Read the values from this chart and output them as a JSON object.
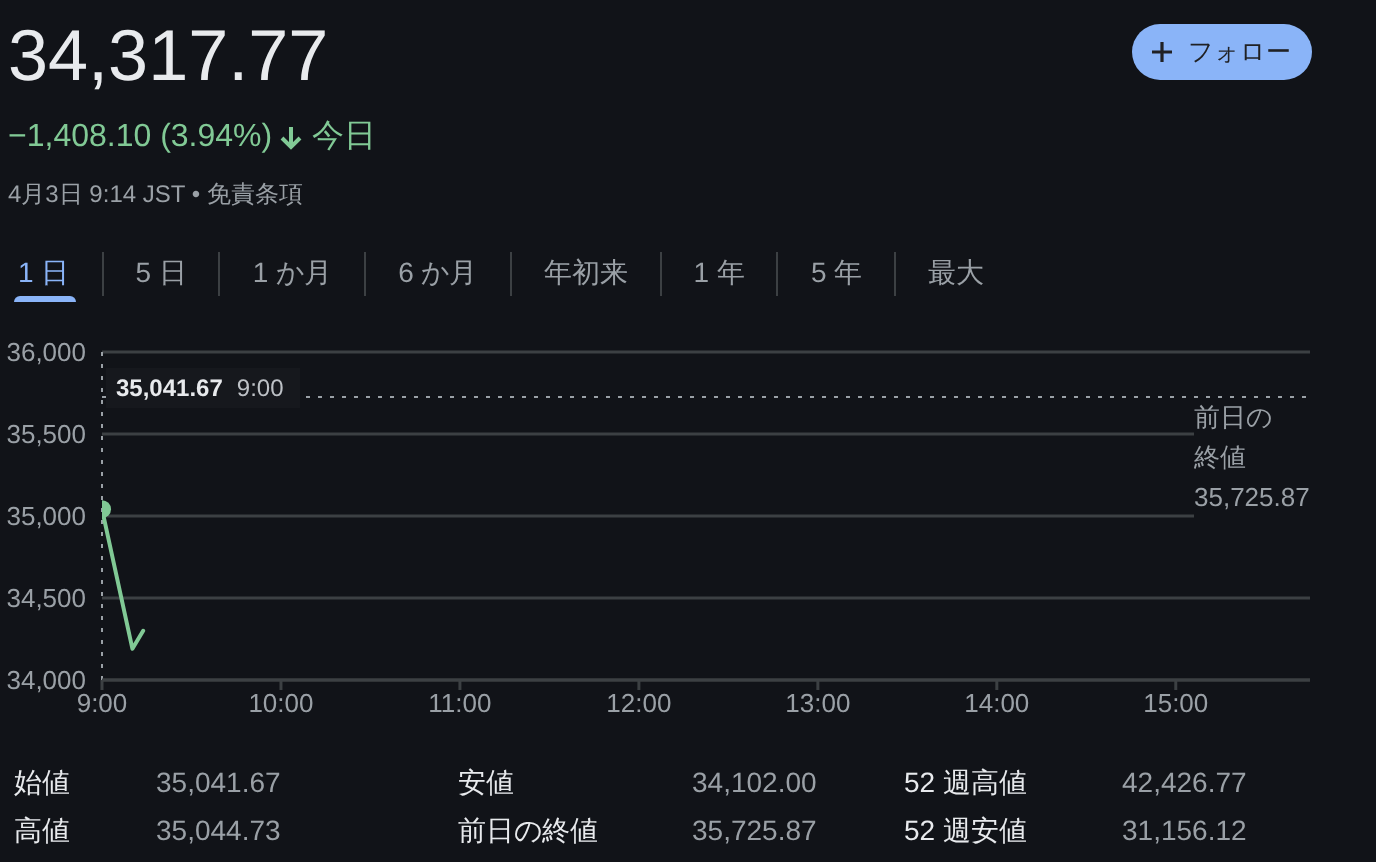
{
  "chart_data": {
    "type": "line",
    "title": "34,317.77",
    "subtitle": "−1,408.10 (3.94%) 今日",
    "annotations": [
      "4月3日 9:14 JST • 免責条項",
      "フォロー",
      "1 日",
      "5 日",
      "1 か月",
      "6 か月",
      "年初来",
      "1 年",
      "5 年",
      "最大",
      "始値",
      "35,041.67",
      "高値",
      "35,044.73",
      "安値",
      "34,102.00",
      "前日の終値",
      "35,725.87",
      "52 週高値",
      "42,426.77",
      "52 週安値",
      "31,156.12",
      "35,041.67 9:00"
    ],
    "series": [
      {
        "color": "#81c995",
        "x": [
          9,
          9.17,
          9.23
        ],
        "values": [
          35041.67,
          34190,
          34300
        ]
      },
      {
        "type": "scatter",
        "color": "#81c995",
        "marker": "circle",
        "x": [
          9
        ],
        "values": [
          35041.67
        ]
      }
    ],
    "xlim": [
      9,
      15.75
    ],
    "xticks": [
      {
        "value": 9,
        "label": "9:00"
      },
      {
        "value": 10,
        "label": "10:00"
      },
      {
        "value": 11,
        "label": "11:00"
      },
      {
        "value": 12,
        "label": "12:00"
      },
      {
        "value": 13,
        "label": "13:00"
      },
      {
        "value": 14,
        "label": "14:00"
      },
      {
        "value": 15,
        "label": "15:00"
      }
    ],
    "ylim": [
      34000,
      36000
    ],
    "yticks": [
      {
        "value": 34000,
        "label": "34,000"
      },
      {
        "value": 34500,
        "label": "34,500"
      },
      {
        "value": 35000,
        "label": "35,000"
      },
      {
        "value": 35500,
        "label": "35,500"
      },
      {
        "value": 36000,
        "label": "36,000"
      }
    ],
    "grid": "y",
    "ref_lines": [
      {
        "axis": "y",
        "value": 35725.87,
        "label": "前日の終値 35,725.87",
        "line_style": "dotted",
        "color": "#9aa0a6"
      },
      {
        "axis": "x",
        "value": 9,
        "line_style": "dotted",
        "color": "#9aa0a6"
      }
    ]
  }
}
